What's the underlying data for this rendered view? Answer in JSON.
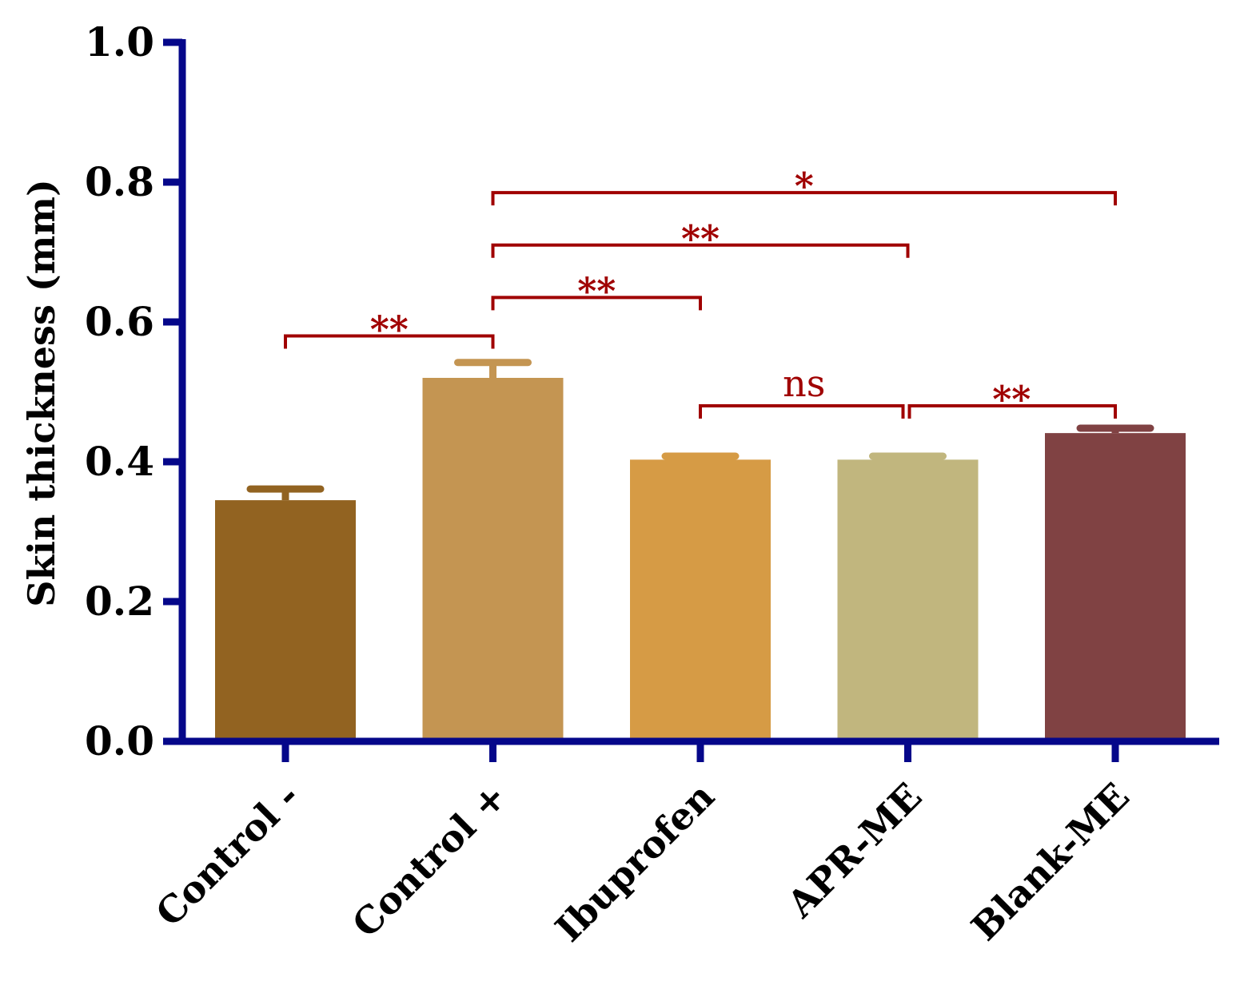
{
  "chart_data": {
    "type": "bar",
    "title": "",
    "xlabel": "",
    "ylabel": "Skin thickness (mm)",
    "ylim": [
      0.0,
      1.0
    ],
    "yticks": [
      "0.0",
      "0.2",
      "0.4",
      "0.6",
      "0.8",
      "1.0"
    ],
    "grid": false,
    "categories": [
      "Control -",
      "Control +",
      "Ibuprofen",
      "APR-ME",
      "Blank-ME"
    ],
    "values": [
      0.345,
      0.52,
      0.403,
      0.403,
      0.441
    ],
    "errors": [
      0.016,
      0.022,
      0.005,
      0.005,
      0.007
    ],
    "bar_colors": [
      "#926321",
      "#c49552",
      "#d69b45",
      "#c1b67e",
      "#804243"
    ],
    "axis_color": "#05078a",
    "annotation_color": "#a00000",
    "comparisons": [
      {
        "from": 0,
        "to": 1,
        "label": "**",
        "level": 0.58
      },
      {
        "from": 1,
        "to": 2,
        "label": "**",
        "level": 0.635
      },
      {
        "from": 1,
        "to": 3,
        "label": "**",
        "level": 0.71
      },
      {
        "from": 1,
        "to": 4,
        "label": "*",
        "level": 0.785
      },
      {
        "from": 2,
        "to": 3,
        "label": "ns",
        "level": 0.48
      },
      {
        "from": 3,
        "to": 4,
        "label": "**",
        "level": 0.48
      }
    ]
  }
}
